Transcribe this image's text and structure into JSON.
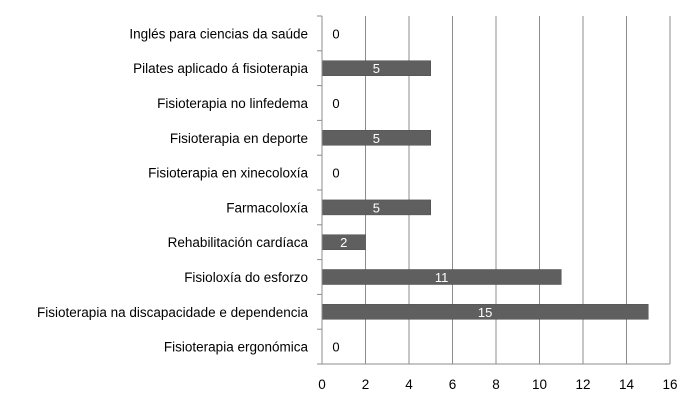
{
  "chart_data": {
    "type": "bar",
    "orientation": "horizontal",
    "categories": [
      "Inglés para ciencias da saúde",
      "Pilates aplicado á fisioterapia",
      "Fisioterapia no linfedema",
      "Fisioterapia en deporte",
      "Fisioterapia en xinecoloxía",
      "Farmacoloxía",
      "Rehabilitación cardíaca",
      "Fisioloxía do esforzo",
      "Fisioterapia na discapacidade e dependencia",
      "Fisioterapia ergonómica"
    ],
    "values": [
      0,
      5,
      0,
      5,
      0,
      5,
      2,
      11,
      15,
      0
    ],
    "xlim": [
      0,
      16
    ],
    "xticks": [
      0,
      2,
      4,
      6,
      8,
      10,
      12,
      14,
      16
    ],
    "title": "",
    "xlabel": "",
    "ylabel": "",
    "grid": "vertical",
    "legend": "none",
    "colors": {
      "bar": "#5f5f5f",
      "grid": "#8c8c8c",
      "axis": "#8c8c8c",
      "label_inside": "#ffffff",
      "label_outside": "#000000"
    }
  }
}
